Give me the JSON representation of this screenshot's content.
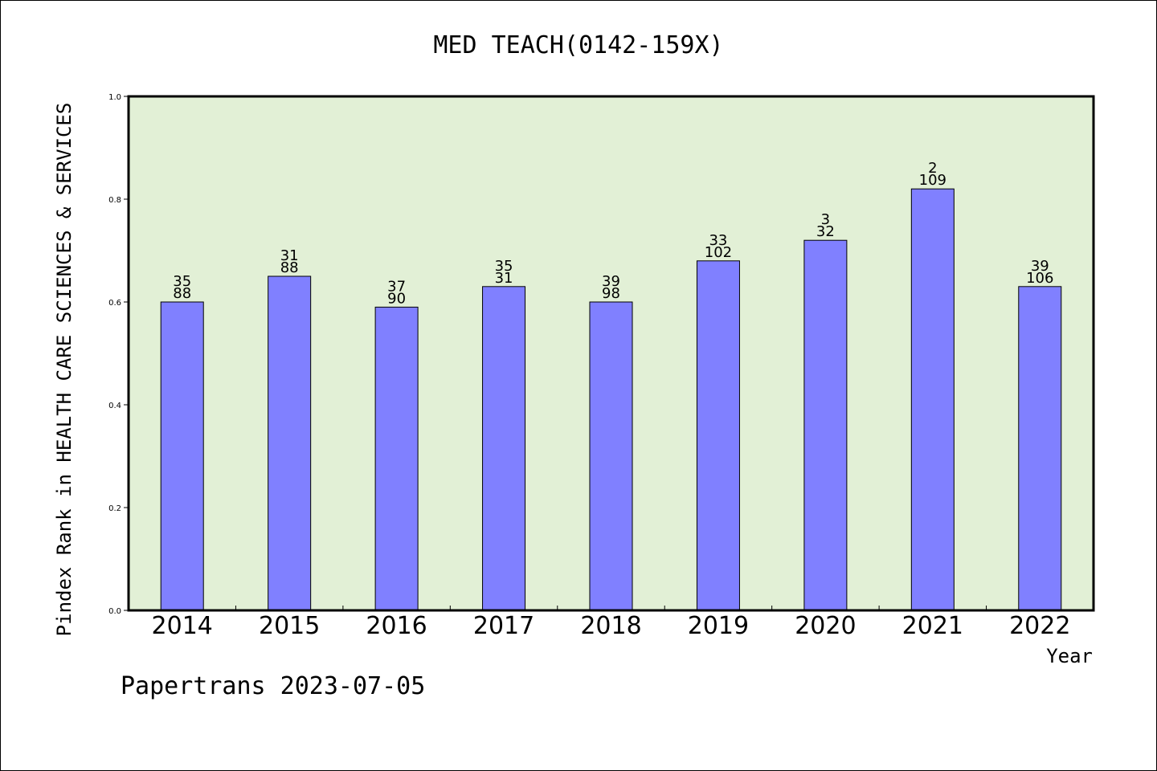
{
  "chart_data": {
    "type": "bar",
    "title": "MED TEACH(0142-159X)",
    "xlabel": "Year",
    "ylabel": "Pindex Rank in HEALTH CARE SCIENCES & SERVICES",
    "categories": [
      "2014",
      "2015",
      "2016",
      "2017",
      "2018",
      "2019",
      "2020",
      "2021",
      "2022"
    ],
    "values": [
      0.6,
      0.65,
      0.59,
      0.63,
      0.6,
      0.68,
      0.72,
      0.82,
      0.63
    ],
    "rank_labels": [
      "35",
      "31",
      "37",
      "35",
      "39",
      "33",
      "3",
      "2",
      "39"
    ],
    "total_labels": [
      "88",
      "88",
      "90",
      "31",
      "98",
      "102",
      "32",
      "109",
      "106"
    ],
    "ylim": [
      0.0,
      1.0
    ],
    "yticks": [
      "0.0",
      "0.2",
      "0.4",
      "0.6",
      "0.8",
      "1.0"
    ],
    "bar_color": "#8080ff",
    "plot_background": "#e2f0d6",
    "grid": false,
    "legend": "none"
  },
  "footer": "Papertrans 2023-07-05"
}
